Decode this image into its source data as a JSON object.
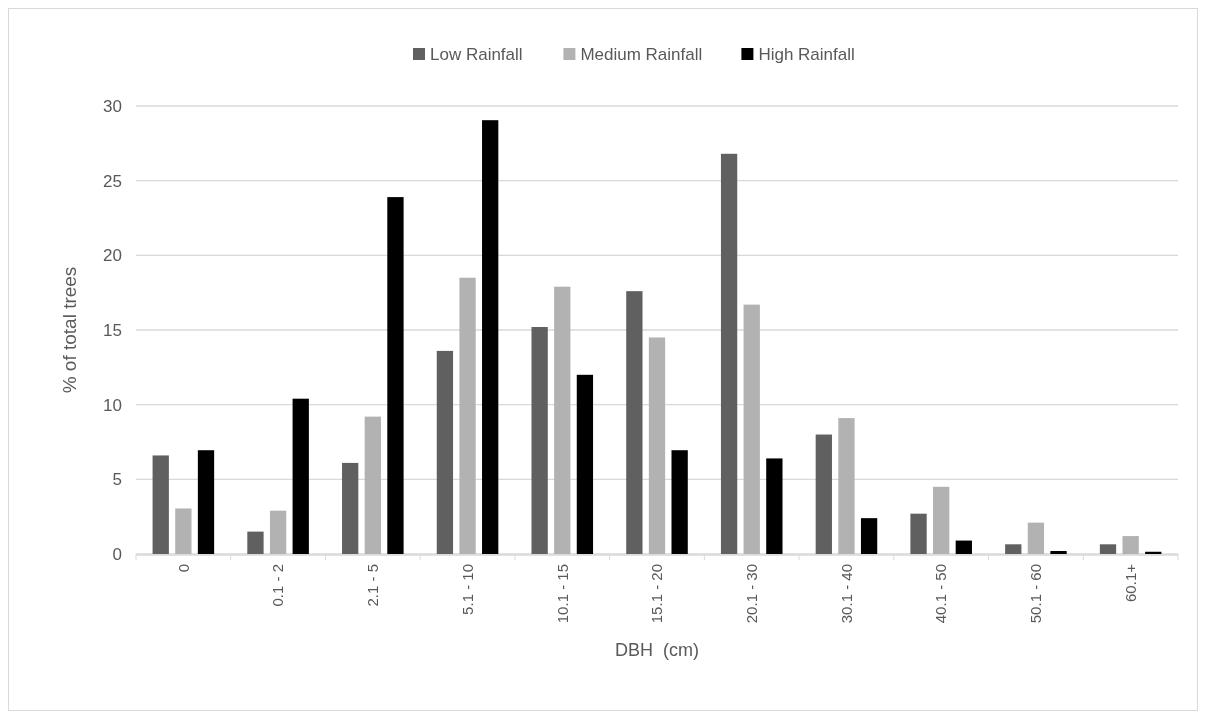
{
  "chart_data": {
    "type": "bar",
    "xlabel": "DBH  (cm)",
    "ylabel": "% of total trees",
    "categories": [
      "0",
      "0.1 - 2",
      "2.1 - 5",
      "5.1 - 10",
      "10.1 - 15",
      "15.1 - 20",
      "20.1 - 30",
      "30.1 - 40",
      "40.1 - 50",
      "50.1 - 60",
      "60.1+"
    ],
    "series": [
      {
        "name": "Low Rainfall",
        "color": "#606060",
        "values": [
          6.6,
          1.5,
          6.1,
          13.6,
          15.2,
          17.6,
          26.8,
          8.0,
          2.7,
          0.65,
          0.65
        ]
      },
      {
        "name": "Medium Rainfall",
        "color": "#b2b2b2",
        "values": [
          3.05,
          2.9,
          9.2,
          18.5,
          17.9,
          14.5,
          16.7,
          9.1,
          4.5,
          2.1,
          1.2
        ]
      },
      {
        "name": "High Rainfall",
        "color": "#000000",
        "values": [
          6.95,
          10.4,
          23.9,
          29.05,
          12.0,
          6.95,
          6.4,
          2.4,
          0.9,
          0.2,
          0.15
        ]
      }
    ],
    "ylim": [
      0,
      30
    ],
    "yticks": [
      0,
      5,
      10,
      15,
      20,
      25,
      30
    ],
    "grid": "y",
    "legend": "top"
  }
}
